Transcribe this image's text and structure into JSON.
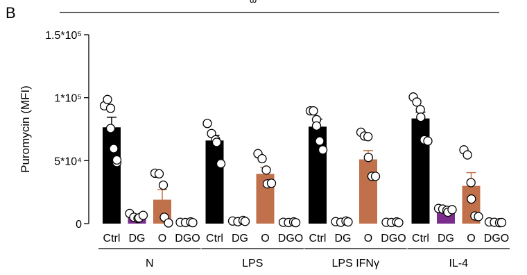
{
  "panel_label": "B",
  "header_fragment": "ω",
  "chart_data": {
    "type": "bar",
    "ylabel": "Puromycin (MFI)",
    "ylim": [
      0,
      150000
    ],
    "yticks": [
      {
        "value": 0,
        "label": "0"
      },
      {
        "value": 50000,
        "label": "5*10⁴"
      },
      {
        "value": 100000,
        "label": "1*10⁵"
      },
      {
        "value": 150000,
        "label": "1.5*10⁵"
      }
    ],
    "treatments": [
      {
        "label": "Ctrl",
        "color": "#000000",
        "label_color": "#000000"
      },
      {
        "label": "DG",
        "color": "#7b2d8e",
        "label_color": "#7b2d8e"
      },
      {
        "label": "O",
        "color": "#c0704a",
        "label_color": "#c0704a"
      },
      {
        "label": "DGO",
        "color": "#a8a8a8",
        "label_color": "#a8a8a8"
      }
    ],
    "groups": [
      {
        "label": "N",
        "label_color": "#000000",
        "bars": [
          {
            "mean": 76500,
            "sem": 8000,
            "points": [
              93000,
              98000,
              91000,
              75000,
              59000,
              48000,
              50000
            ]
          },
          {
            "mean": 5000,
            "sem": 1000,
            "points": [
              7500,
              4500,
              3500,
              4000,
              6000
            ]
          },
          {
            "mean": 19000,
            "sem": 8000,
            "points": [
              39500,
              39000,
              30000,
              4500,
              0
            ]
          },
          {
            "mean": 500,
            "sem": 200,
            "points": [
              500,
              300,
              800,
              200
            ]
          }
        ]
      },
      {
        "label": "LPS",
        "label_color": "#d63a3a",
        "bars": [
          {
            "mean": 66000,
            "sem": 4000,
            "points": [
              79000,
              71000,
              66000,
              64000,
              47000
            ]
          },
          {
            "mean": 1500,
            "sem": 500,
            "points": [
              1500,
              1000,
              2000,
              1200
            ]
          },
          {
            "mean": 39500,
            "sem": 5000,
            "points": [
              55000,
              51000,
              42000,
              31000,
              31500
            ]
          },
          {
            "mean": 500,
            "sem": 200,
            "points": [
              500,
              300,
              800,
              200
            ]
          }
        ]
      },
      {
        "label": "LPS IFNγ",
        "label_color": "#b02a2a",
        "bars": [
          {
            "mean": 77000,
            "sem": 6000,
            "points": [
              89000,
              89000,
              82000,
              77000,
              65000,
              58000,
              58000
            ]
          },
          {
            "mean": 1000,
            "sem": 400,
            "points": [
              1000,
              500,
              1500,
              800
            ]
          },
          {
            "mean": 51000,
            "sem": 7000,
            "points": [
              72000,
              69000,
              68500,
              52000,
              37000,
              37000
            ]
          },
          {
            "mean": 500,
            "sem": 200,
            "points": [
              500,
              300,
              800,
              200
            ]
          }
        ]
      },
      {
        "label": "IL-4",
        "label_color": "#5b8fc9",
        "bars": [
          {
            "mean": 83500,
            "sem": 5000,
            "points": [
              100000,
              96000,
              90000,
              84000,
              66000,
              65000
            ]
          },
          {
            "mean": 9500,
            "sem": 1500,
            "points": [
              11500,
              11000,
              10000,
              8500,
              10500
            ]
          },
          {
            "mean": 30000,
            "sem": 10500,
            "points": [
              58000,
              54000,
              32000,
              19000,
              5500,
              5000
            ]
          },
          {
            "mean": 500,
            "sem": 200,
            "points": [
              800,
              500,
              200,
              300
            ]
          }
        ]
      }
    ]
  }
}
